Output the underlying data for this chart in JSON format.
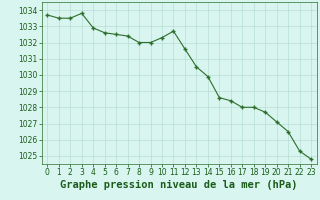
{
  "x": [
    0,
    1,
    2,
    3,
    4,
    5,
    6,
    7,
    8,
    9,
    10,
    11,
    12,
    13,
    14,
    15,
    16,
    17,
    18,
    19,
    20,
    21,
    22,
    23
  ],
  "y": [
    1033.7,
    1033.5,
    1033.5,
    1033.8,
    1032.9,
    1032.6,
    1032.5,
    1032.4,
    1032.0,
    1032.0,
    1032.3,
    1032.7,
    1031.6,
    1030.5,
    1029.9,
    1028.6,
    1028.4,
    1028.0,
    1028.0,
    1027.7,
    1027.1,
    1026.5,
    1025.3,
    1024.8
  ],
  "line_color": "#2d6e2d",
  "marker_color": "#2d6e2d",
  "bg_color": "#d8f5ef",
  "grid_color": "#b8ddd6",
  "xlabel": "Graphe pression niveau de la mer (hPa)",
  "xlabel_color": "#1a5c1a",
  "ylim": [
    1024.5,
    1034.5
  ],
  "yticks": [
    1025,
    1026,
    1027,
    1028,
    1029,
    1030,
    1031,
    1032,
    1033,
    1034
  ],
  "xticks": [
    0,
    1,
    2,
    3,
    4,
    5,
    6,
    7,
    8,
    9,
    10,
    11,
    12,
    13,
    14,
    15,
    16,
    17,
    18,
    19,
    20,
    21,
    22,
    23
  ],
  "tick_fontsize": 5.5,
  "xlabel_fontsize": 7.5
}
